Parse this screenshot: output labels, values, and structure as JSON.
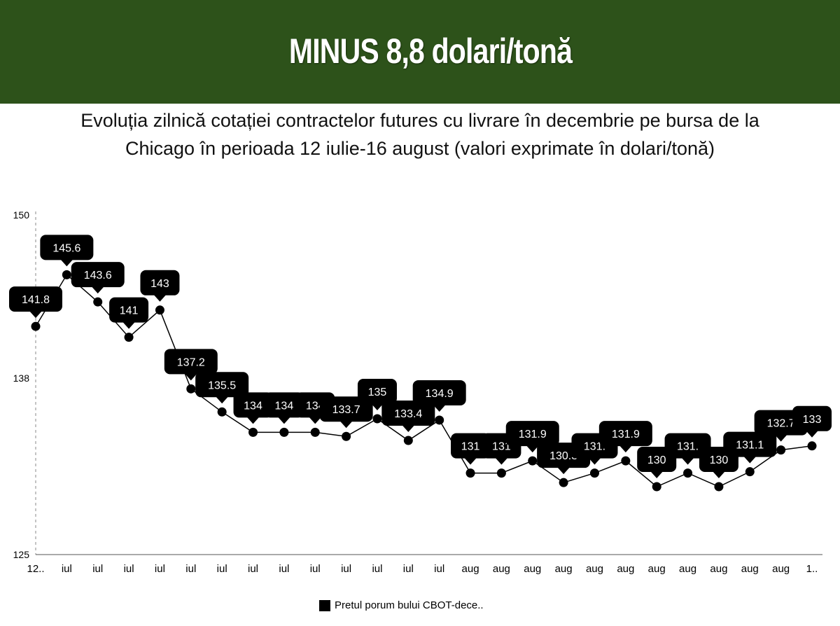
{
  "header": {
    "title": "MINUS 8,8 dolari/tonă",
    "subtitle_line1": "Evoluția zilnică cotației contractelor futures cu livrare în decembrie pe bursa de la",
    "subtitle_line2": "Chicago în perioada 12 iulie-16 august (valori exprimate în dolari/tonă)"
  },
  "colors": {
    "banner": "#2d521a",
    "series": "#000000",
    "label_bg": "#000000",
    "label_text": "#ffffff"
  },
  "chart_data": {
    "type": "line",
    "title": "",
    "ylim": [
      125,
      150
    ],
    "yticks": [
      "125",
      "138",
      "150"
    ],
    "grid": false,
    "legend_position": "bottom",
    "categories": [
      "12..",
      "iul",
      "iul",
      "iul",
      "iul",
      "iul",
      "iul",
      "iul",
      "iul",
      "iul",
      "iul",
      "iul",
      "iul",
      "iul",
      "aug",
      "aug",
      "aug",
      "aug",
      "aug",
      "aug",
      "aug",
      "aug",
      "aug",
      "aug",
      "aug",
      "1.."
    ],
    "series": [
      {
        "name": "Pretul porum bului CBOT-dece..",
        "values": [
          141.8,
          145.6,
          143.6,
          141,
          143,
          137.2,
          135.5,
          134,
          134,
          134,
          133.7,
          135,
          133.4,
          134.9,
          131,
          131,
          131.9,
          130.3,
          131,
          131.9,
          130,
          131,
          130,
          131.1,
          132.7,
          133
        ],
        "labels": [
          "141.8",
          "145.6",
          "143.6",
          "141",
          "143",
          "137.2",
          "135.5",
          "134",
          "134",
          "134",
          "133.7",
          "135",
          "133.4",
          "134.9",
          "131",
          "131",
          "131.9",
          "130.3",
          "131.",
          "131.9",
          "130",
          "131.",
          "130",
          "131.1",
          "132.7",
          "133"
        ]
      }
    ]
  }
}
